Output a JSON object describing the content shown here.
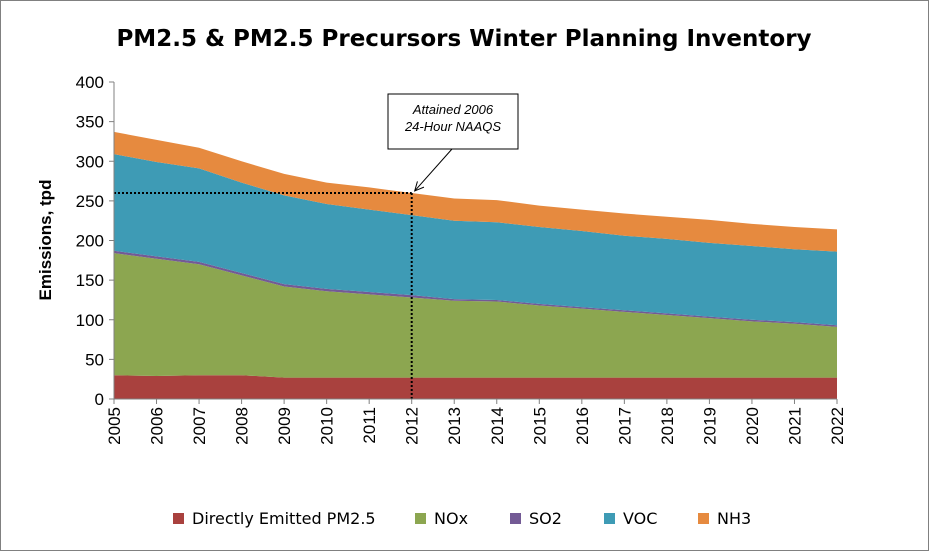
{
  "chart_data": {
    "type": "area",
    "stacked": true,
    "title": "PM2.5 & PM2.5 Precursors Winter Planning Inventory",
    "ylabel": "Emissions, tpd",
    "xlabel": "",
    "ylim": [
      0,
      400
    ],
    "yticks": [
      0,
      50,
      100,
      150,
      200,
      250,
      300,
      350,
      400
    ],
    "x": [
      2005,
      2006,
      2007,
      2008,
      2009,
      2010,
      2011,
      2012,
      2013,
      2014,
      2015,
      2016,
      2017,
      2018,
      2019,
      2020,
      2021,
      2022
    ],
    "grid": false,
    "legend_position": "bottom",
    "series": [
      {
        "name": "Directly Emitted PM2.5",
        "color": "#a9413e",
        "values": [
          30,
          29,
          30,
          30,
          27,
          27,
          27,
          27,
          27,
          27,
          27,
          27,
          27,
          27,
          27,
          27,
          27,
          27
        ]
      },
      {
        "name": "NOx",
        "color": "#8ca650",
        "values": [
          154,
          148,
          140,
          126,
          115,
          109,
          105,
          101,
          97,
          96,
          91,
          87,
          83,
          79,
          75,
          71,
          68,
          64
        ]
      },
      {
        "name": "SO2",
        "color": "#735a95",
        "values": [
          3,
          3,
          3,
          3,
          3,
          3,
          3,
          3,
          2,
          2,
          2,
          2,
          2,
          2,
          2,
          2,
          2,
          2
        ]
      },
      {
        "name": "VOC",
        "color": "#3e9bb5",
        "values": [
          122,
          119,
          118,
          114,
          112,
          107,
          104,
          101,
          99,
          98,
          97,
          96,
          94,
          94,
          93,
          93,
          92,
          93
        ]
      },
      {
        "name": "NH3",
        "color": "#e68a3f",
        "values": [
          28,
          28,
          26,
          27,
          27,
          27,
          28,
          28,
          28,
          28,
          27,
          27,
          28,
          28,
          29,
          28,
          28,
          28
        ]
      }
    ],
    "annotations": [
      {
        "text_lines": [
          "Attained 2006",
          "24-Hour NAAQS"
        ],
        "x": 2012,
        "y": 260
      }
    ]
  }
}
